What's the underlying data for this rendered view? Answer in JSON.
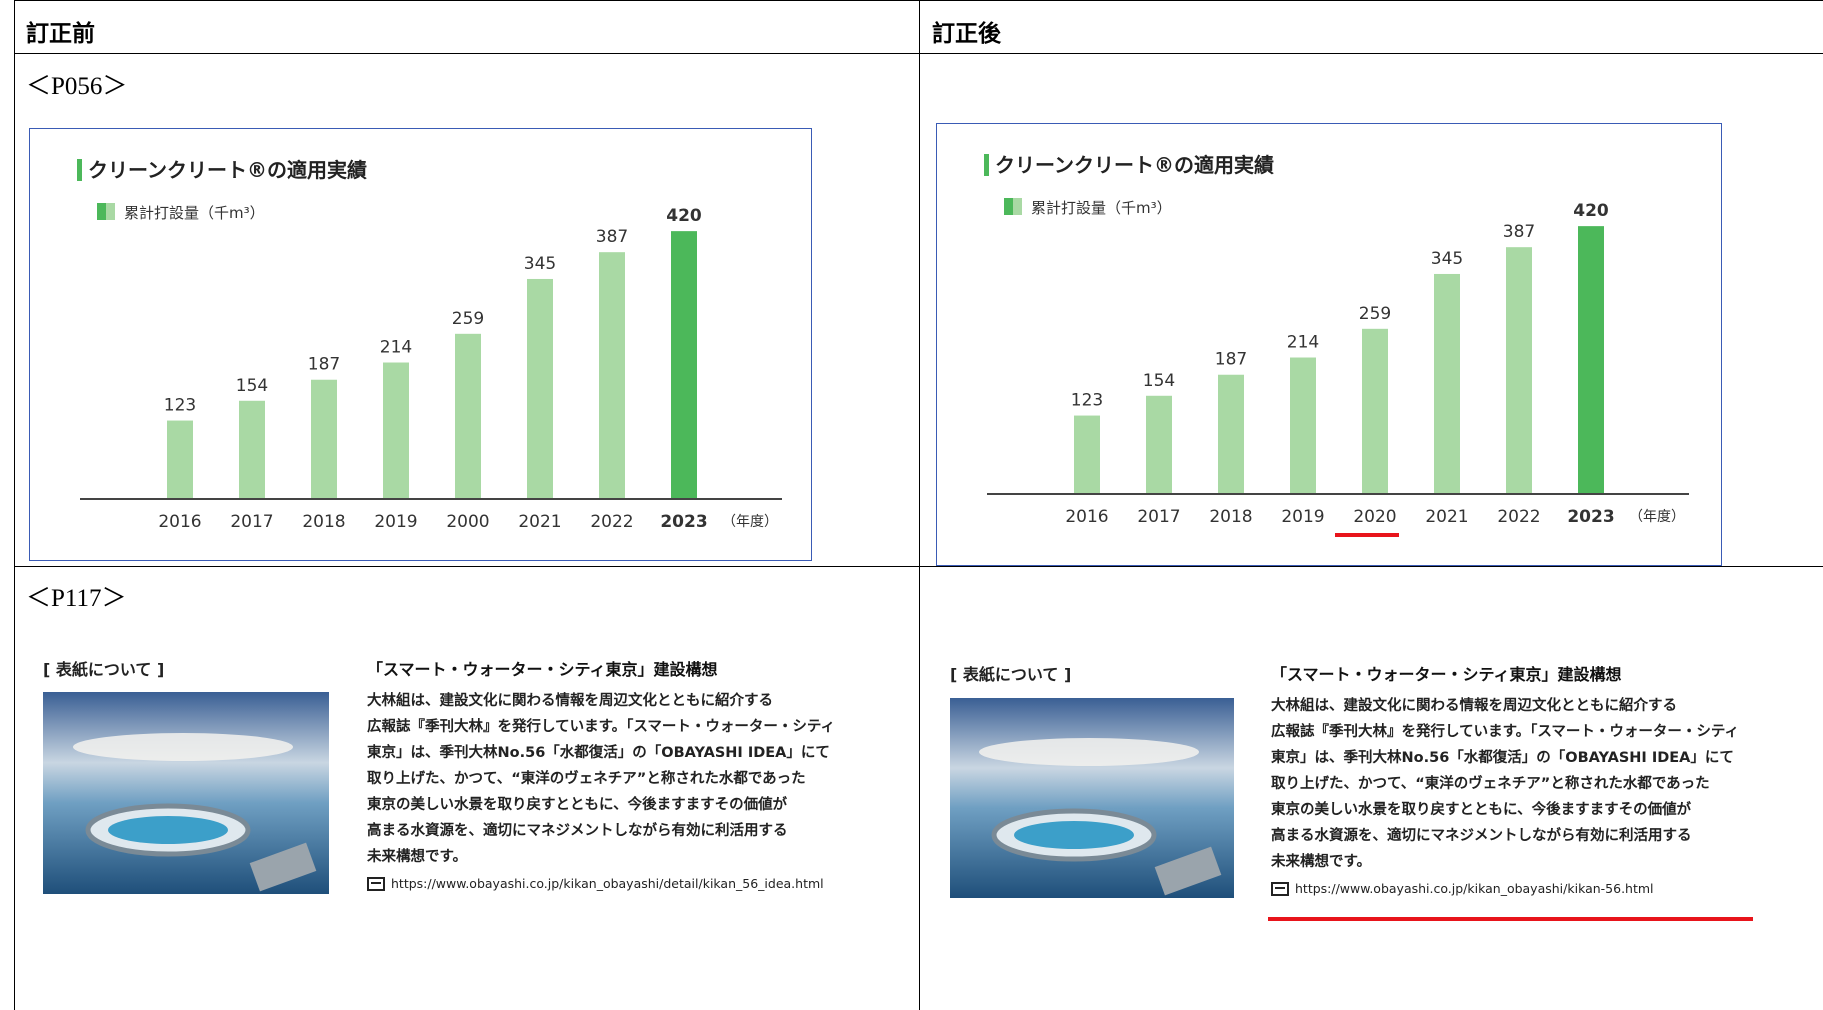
{
  "table": {
    "headers": [
      "訂正前",
      "訂正後"
    ],
    "rows": [
      {
        "label": "＜P056＞"
      },
      {
        "label": "＜P117＞"
      }
    ]
  },
  "chart_data": [
    {
      "type": "bar",
      "title": "クリーンクリート®の適用実績",
      "categories": [
        "2016",
        "2017",
        "2018",
        "2019",
        "2000",
        "2021",
        "2022",
        "2023"
      ],
      "x_unit": "（年度）",
      "series": [
        {
          "name": "累計打設量（千m³）",
          "color": "#a9d9a4",
          "colors": [
            "#a9d9a4",
            "#a9d9a4",
            "#a9d9a4",
            "#a9d9a4",
            "#a9d9a4",
            "#a9d9a4",
            "#a9d9a4",
            "#4cb85a"
          ],
          "values": [
            123,
            154,
            187,
            214,
            259,
            345,
            387,
            420
          ]
        }
      ],
      "ylim": [
        0,
        450
      ]
    },
    {
      "type": "bar",
      "title": "クリーンクリート®の適用実績",
      "categories": [
        "2016",
        "2017",
        "2018",
        "2019",
        "2020",
        "2021",
        "2022",
        "2023"
      ],
      "x_unit": "（年度）",
      "series": [
        {
          "name": "累計打設量（千m³）",
          "color": "#a9d9a4",
          "colors": [
            "#a9d9a4",
            "#a9d9a4",
            "#a9d9a4",
            "#a9d9a4",
            "#a9d9a4",
            "#a9d9a4",
            "#a9d9a4",
            "#4cb85a"
          ],
          "values": [
            123,
            154,
            187,
            214,
            259,
            345,
            387,
            420
          ]
        }
      ],
      "ylim": [
        0,
        450
      ]
    }
  ],
  "cover": [
    {
      "caption": "[ 表紙について ]",
      "heading": "「スマート・ウォーター・シティ東京」建設構想",
      "body": [
        "大林組は、建設文化に関わる情報を周辺文化とともに紹介する",
        "広報誌『季刊大林』を発行しています。「スマート・ウォーター・シティ",
        "東京」は、季刊大林No.56「水都復活」の「OBAYASHI IDEA」にて",
        "取り上げた、かつて、“東洋のヴェネチア”と称された水都であった",
        "東京の美しい水景を取り戻すとともに、今後ますますその価値が",
        "高まる水資源を、適切にマネジメントしながら有効に利活用する",
        "未来構想です。"
      ],
      "url": "https://www.obayashi.co.jp/kikan_obayashi/detail/kikan_56_idea.html"
    },
    {
      "caption": "[ 表紙について ]",
      "heading": "「スマート・ウォーター・シティ東京」建設構想",
      "body": [
        "大林組は、建設文化に関わる情報を周辺文化とともに紹介する",
        "広報誌『季刊大林』を発行しています。「スマート・ウォーター・シティ",
        "東京」は、季刊大林No.56「水都復活」の「OBAYASHI IDEA」にて",
        "取り上げた、かつて、“東洋のヴェネチア”と称された水都であった",
        "東京の美しい水景を取り戻すとともに、今後ますますその価値が",
        "高まる水資源を、適切にマネジメントしながら有効に利活用する",
        "未来構想です。"
      ],
      "url": "https://www.obayashi.co.jp/kikan_obayashi/kikan-56.html"
    }
  ]
}
